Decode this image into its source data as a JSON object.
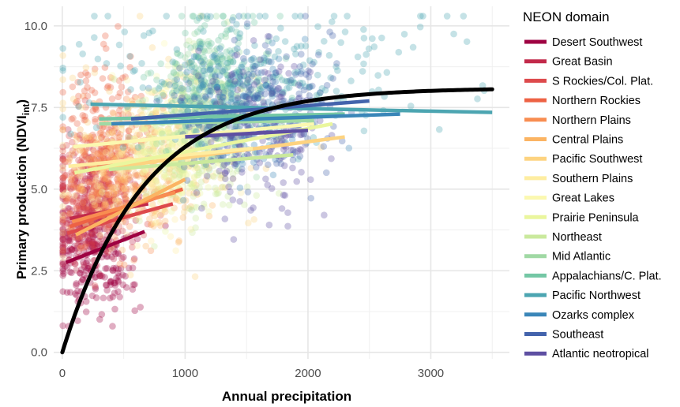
{
  "chart_data": {
    "type": "scatter",
    "xlabel": "Annual precipitation",
    "ylabel_main": "Primary production (NDVI",
    "ylabel_sub": "int",
    "ylabel_close": ")",
    "xlim": [
      -70,
      3640
    ],
    "ylim": [
      -0.2,
      10.6
    ],
    "x_ticks": [
      0,
      1000,
      2000,
      3000
    ],
    "x_tick_labels": [
      "0",
      "1000",
      "2000",
      "3000"
    ],
    "y_ticks": [
      0,
      2.5,
      5,
      7.5,
      10
    ],
    "y_tick_labels": [
      "0.0",
      "2.5",
      "5.0",
      "7.5",
      "10.0"
    ],
    "grid": true,
    "legend": {
      "title": "NEON domain",
      "placement": "right"
    },
    "series": [
      {
        "name": "Desert Southwest",
        "color": "#9E0142",
        "cx": 260,
        "sx": 180,
        "cy": 3.1,
        "sy": 1.0,
        "n": 260,
        "fit": {
          "x": [
            30,
            670
          ],
          "y": [
            2.75,
            3.7
          ]
        }
      },
      {
        "name": "Great Basin",
        "color": "#C2294A",
        "cx": 220,
        "sx": 160,
        "cy": 4.3,
        "sy": 0.9,
        "n": 240,
        "fit": {
          "x": [
            60,
            700
          ],
          "y": [
            4.1,
            4.55
          ]
        }
      },
      {
        "name": "S Rockies/Col. Plat.",
        "color": "#DD4A4C",
        "cx": 300,
        "sx": 170,
        "cy": 5.0,
        "sy": 0.9,
        "n": 200,
        "fit": {
          "x": [
            40,
            900
          ],
          "y": [
            3.65,
            4.55
          ]
        }
      },
      {
        "name": "Northern Rockies",
        "color": "#ED6244",
        "cx": 380,
        "sx": 200,
        "cy": 6.6,
        "sy": 1.2,
        "n": 200,
        "fit": {
          "x": [
            60,
            980
          ],
          "y": [
            3.85,
            5.0
          ]
        }
      },
      {
        "name": "Northern Plains",
        "color": "#F88D51",
        "cx": 400,
        "sx": 180,
        "cy": 5.4,
        "sy": 1.0,
        "n": 180,
        "fit": {
          "x": [
            80,
            920
          ],
          "y": [
            4.0,
            4.9
          ]
        }
      },
      {
        "name": "Central Plains",
        "color": "#FBB463",
        "cx": 700,
        "sx": 250,
        "cy": 5.3,
        "sy": 0.9,
        "n": 160,
        "fit": {
          "x": [
            110,
            1000
          ],
          "y": [
            3.6,
            5.3
          ]
        }
      },
      {
        "name": "Pacific Southwest",
        "color": "#FDD380",
        "cx": 800,
        "sx": 500,
        "cy": 6.3,
        "sy": 1.3,
        "n": 170,
        "fit": {
          "x": [
            260,
            2300
          ],
          "y": [
            5.6,
            6.6
          ]
        }
      },
      {
        "name": "Southern Plains",
        "color": "#FEEDA1",
        "cx": 700,
        "sx": 280,
        "cy": 5.7,
        "sy": 1.0,
        "n": 160,
        "fit": {
          "x": [
            50,
            1550
          ],
          "y": [
            5.7,
            6.25
          ]
        }
      },
      {
        "name": "Great Lakes",
        "color": "#FBF8B0",
        "cx": 950,
        "sx": 200,
        "cy": 6.9,
        "sy": 1.0,
        "n": 160,
        "fit": {
          "x": [
            90,
            2050
          ],
          "y": [
            6.3,
            7.0
          ]
        }
      },
      {
        "name": "Prairie Peninsula",
        "color": "#EAF69E",
        "cx": 900,
        "sx": 180,
        "cy": 5.9,
        "sy": 1.0,
        "n": 150,
        "fit": {
          "x": [
            100,
            2200
          ],
          "y": [
            5.5,
            7.0
          ]
        }
      },
      {
        "name": "Northeast",
        "color": "#CAE99D",
        "cx": 1100,
        "sx": 250,
        "cy": 6.5,
        "sy": 1.4,
        "n": 170,
        "fit": {
          "x": [
            380,
            1880
          ],
          "y": [
            5.6,
            6.05
          ]
        }
      },
      {
        "name": "Mid Atlantic",
        "color": "#A0D9A4",
        "cx": 1150,
        "sx": 200,
        "cy": 7.6,
        "sy": 1.0,
        "n": 190,
        "fit": {
          "x": [
            300,
            2050
          ],
          "y": [
            7.0,
            7.1
          ]
        }
      },
      {
        "name": "Appalachians/C. Plat.",
        "color": "#74C7A5",
        "cx": 1300,
        "sx": 250,
        "cy": 8.3,
        "sy": 1.0,
        "n": 220,
        "fit": {
          "x": [
            300,
            2300
          ],
          "y": [
            7.15,
            7.3
          ]
        }
      },
      {
        "name": "Pacific Northwest",
        "color": "#4CA5B1",
        "cx": 1600,
        "sx": 700,
        "cy": 8.6,
        "sy": 1.2,
        "n": 240,
        "fit": {
          "x": [
            230,
            3500
          ],
          "y": [
            7.6,
            7.35
          ]
        }
      },
      {
        "name": "Ozarks complex",
        "color": "#3A86B8",
        "cx": 1400,
        "sx": 250,
        "cy": 7.6,
        "sy": 1.0,
        "n": 180,
        "fit": {
          "x": [
            400,
            2750
          ],
          "y": [
            7.0,
            7.3
          ]
        }
      },
      {
        "name": "Southeast",
        "color": "#4363AC",
        "cx": 1600,
        "sx": 300,
        "cy": 7.3,
        "sy": 1.1,
        "n": 200,
        "fit": {
          "x": [
            560,
            2500
          ],
          "y": [
            7.15,
            7.7
          ]
        }
      },
      {
        "name": "Atlantic neotropical",
        "color": "#5E4FA2",
        "cx": 1600,
        "sx": 250,
        "cy": 6.8,
        "sy": 1.2,
        "n": 150,
        "fit": {
          "x": [
            1000,
            2000
          ],
          "y": [
            6.6,
            6.8
          ]
        }
      }
    ],
    "overall_fit": {
      "color": "#000000",
      "x_max": 3500,
      "asymptote": 8.1,
      "rate": 0.0015
    }
  }
}
